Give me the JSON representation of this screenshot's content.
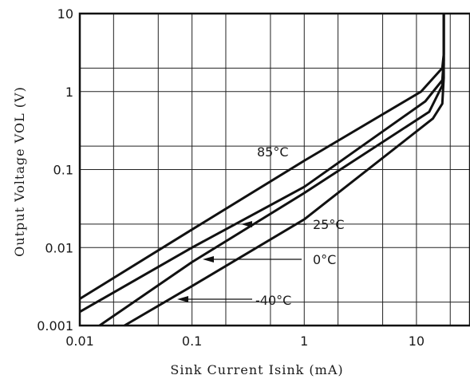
{
  "chart_data": {
    "type": "line",
    "xscale": "log",
    "yscale": "log",
    "xlim": [
      0.01,
      30
    ],
    "ylim": [
      0.001,
      10
    ],
    "grid": true,
    "xlabel": "Sink Current   Isink (mA)",
    "ylabel": "Output  Voltage    VOL (V)",
    "x_ticks": [
      0.01,
      0.1,
      1,
      10
    ],
    "x_tick_labels": [
      "0.01",
      "0.1",
      "1",
      "10"
    ],
    "y_ticks": [
      0.001,
      0.01,
      0.1,
      1,
      10
    ],
    "y_tick_labels": [
      "0.001",
      "0.01",
      "0.1",
      "1",
      "10"
    ],
    "series": [
      {
        "name": "85°C",
        "x": [
          0.01,
          0.1,
          1,
          11,
          17,
          17.5,
          17.5
        ],
        "y": [
          0.0022,
          0.017,
          0.13,
          1.0,
          2.0,
          3.0,
          10
        ]
      },
      {
        "name": "25°C",
        "x": [
          0.01,
          0.1,
          1,
          12,
          17,
          17.5,
          17.5
        ],
        "y": [
          0.0015,
          0.01,
          0.06,
          0.75,
          1.4,
          2.5,
          10
        ]
      },
      {
        "name": "0°C",
        "x": [
          0.015,
          0.1,
          1,
          13,
          17,
          17.5,
          17.5
        ],
        "y": [
          0.001,
          0.0065,
          0.05,
          0.55,
          1.2,
          2.2,
          10
        ]
      },
      {
        "name": "-40°C",
        "x": [
          0.025,
          0.1,
          1,
          14,
          17,
          17.5,
          17.5
        ],
        "y": [
          0.001,
          0.0032,
          0.023,
          0.45,
          0.7,
          1.5,
          10
        ]
      }
    ],
    "annotations": [
      {
        "text": "85°C"
      },
      {
        "text": "25°C"
      },
      {
        "text": "0°C"
      },
      {
        "text": "-40°C"
      }
    ]
  }
}
